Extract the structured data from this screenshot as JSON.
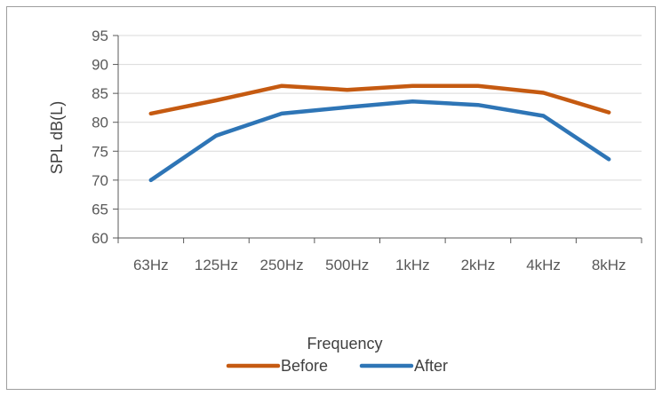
{
  "chart_data": {
    "type": "line",
    "categories": [
      "63Hz",
      "125Hz",
      "250Hz",
      "500Hz",
      "1kHz",
      "2kHz",
      "4kHz",
      "8kHz"
    ],
    "series": [
      {
        "name": "Before",
        "values": [
          81.5,
          83.8,
          86.3,
          85.6,
          86.3,
          86.3,
          85.1,
          81.7
        ],
        "color": "#c55a11"
      },
      {
        "name": "After",
        "values": [
          70.0,
          77.7,
          81.5,
          82.6,
          83.6,
          83.0,
          81.1,
          73.6
        ],
        "color": "#2e75b6"
      }
    ],
    "title": "",
    "xlabel": "Frequency",
    "ylabel": "SPL  dB(L)",
    "ylim": [
      60,
      95
    ],
    "yticks": [
      60,
      65,
      70,
      75,
      80,
      85,
      90,
      95
    ],
    "grid": true,
    "legend": "bottom"
  }
}
